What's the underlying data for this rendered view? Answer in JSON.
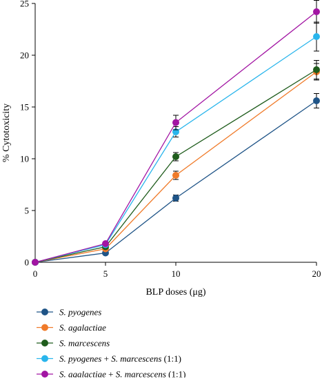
{
  "chart_data": {
    "type": "line",
    "xlabel": "BLP doses (μg)",
    "ylabel": "% Cytotoxicity",
    "title": "",
    "x": [
      0,
      5,
      10,
      20
    ],
    "xticks": [
      "0",
      "5",
      "10",
      "20"
    ],
    "yticks": [
      "0",
      "5",
      "10",
      "15",
      "20",
      "25"
    ],
    "ylim": [
      0,
      25
    ],
    "grid": false,
    "legend_position": "bottom",
    "error_bars": true,
    "series": [
      {
        "name": "S. pyogenes",
        "legend_parts": [
          {
            "t": "S. pyogenes",
            "i": true
          }
        ],
        "color": "#1f5487",
        "values": [
          0,
          0.9,
          6.2,
          15.6
        ],
        "errors": [
          0,
          0.1,
          0.3,
          0.7
        ]
      },
      {
        "name": "S. agalactiae",
        "legend_parts": [
          {
            "t": "S. agalactiae",
            "i": true
          }
        ],
        "color": "#f07b2a",
        "values": [
          0,
          1.3,
          8.4,
          18.4
        ],
        "errors": [
          0,
          0.1,
          0.4,
          0.8
        ]
      },
      {
        "name": "S. marcescens",
        "legend_parts": [
          {
            "t": "S. marcescens",
            "i": true
          }
        ],
        "color": "#1f5c1c",
        "values": [
          0,
          1.5,
          10.2,
          18.6
        ],
        "errors": [
          0,
          0.1,
          0.4,
          0.9
        ]
      },
      {
        "name": "S. pyogenes + S. marcescens (1:1)",
        "legend_parts": [
          {
            "t": "S. pyogenes",
            "i": true
          },
          {
            "t": " + ",
            "i": false
          },
          {
            "t": "S. marcescens",
            "i": true
          },
          {
            "t": " (1:1)",
            "i": false
          }
        ],
        "color": "#29b5ec",
        "values": [
          0,
          1.7,
          12.6,
          21.8
        ],
        "errors": [
          0,
          0.1,
          0.5,
          1.4
        ]
      },
      {
        "name": "S. agalactiae + S. marcescens (1:1)",
        "legend_parts": [
          {
            "t": "S. agalactiae",
            "i": true
          },
          {
            "t": " + ",
            "i": false
          },
          {
            "t": "S. marcescens",
            "i": true
          },
          {
            "t": " (1:1)",
            "i": false
          }
        ],
        "color": "#a215a3",
        "values": [
          0,
          1.8,
          13.5,
          24.2
        ],
        "errors": [
          0,
          0.1,
          0.7,
          1.1
        ]
      }
    ]
  }
}
